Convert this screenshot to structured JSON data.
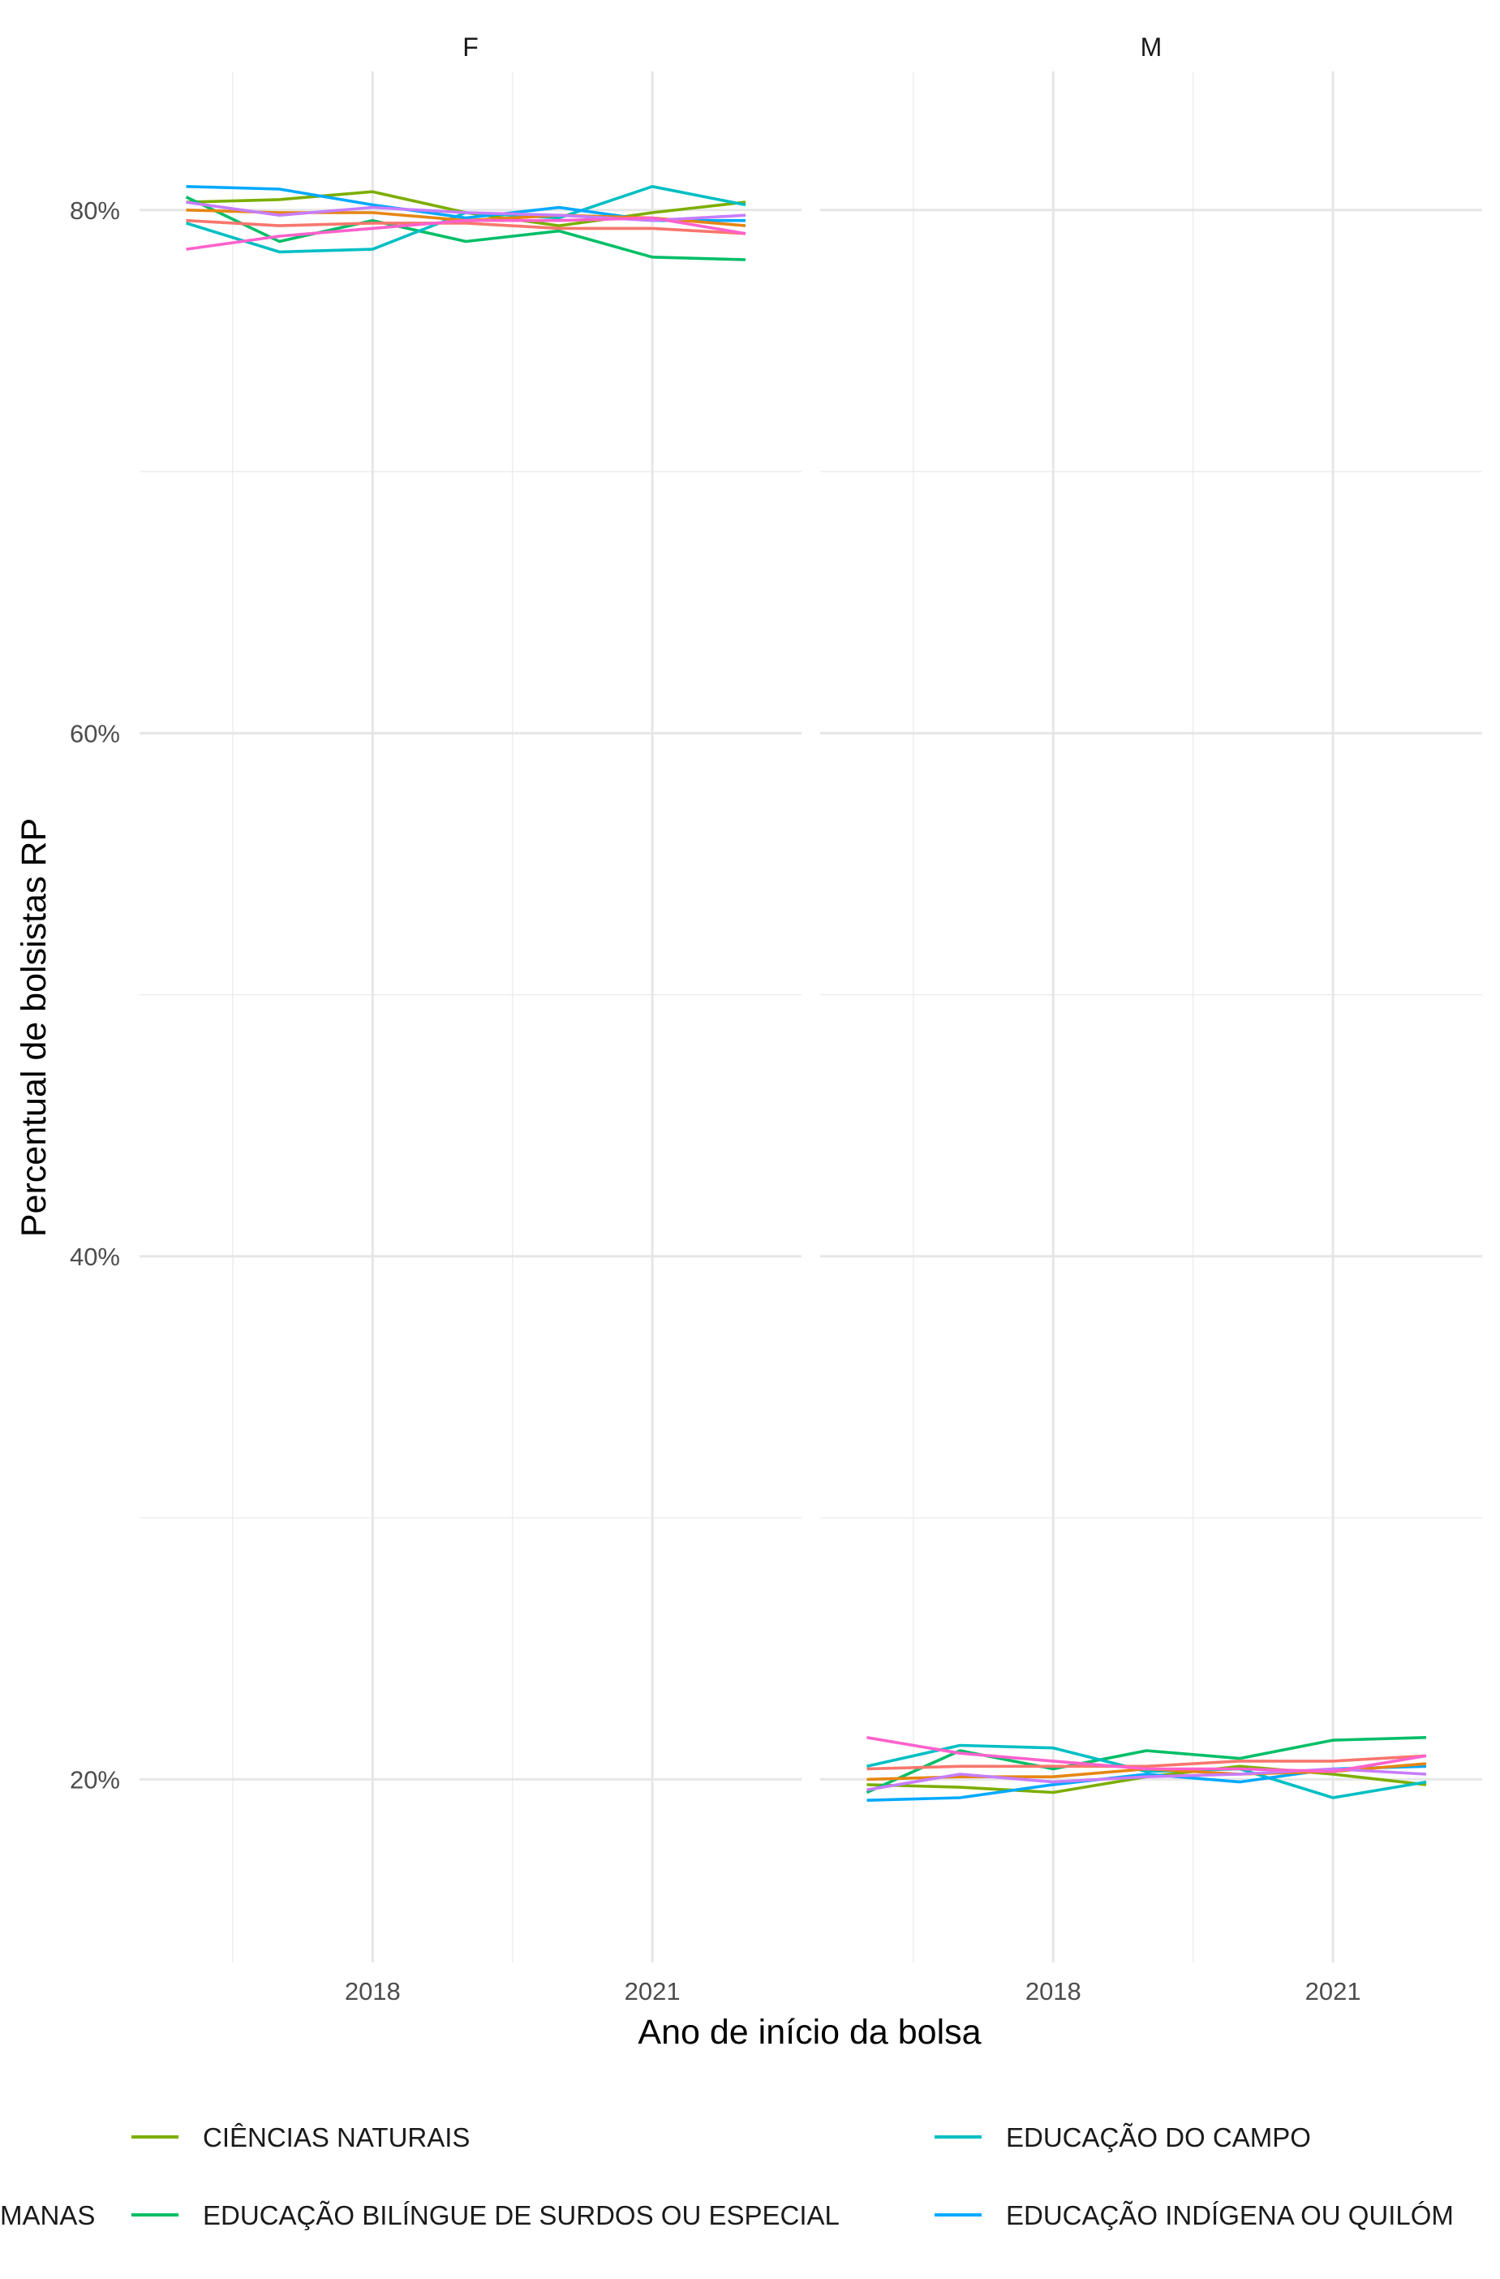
{
  "chart_data": {
    "type": "line",
    "ylabel": "Percentual de bolsistas RP",
    "xlabel": "Ano de início da bolsa",
    "x": [
      2016,
      2017,
      2018,
      2019,
      2020,
      2021,
      2022
    ],
    "xticks": [
      2018,
      2021
    ],
    "xlim": [
      2015.5,
      2022.6
    ],
    "yticks": [
      20,
      40,
      60,
      80
    ],
    "ytick_labels": [
      "20%",
      "40%",
      "60%",
      "80%"
    ],
    "ylim": [
      13,
      85.3
    ],
    "grid": true,
    "legend_position": "bottom",
    "legend_visible_labels": {
      "partial_left": "MANAS",
      "ciencias_naturais": "CIÊNCIAS NATURAIS",
      "educacao_bilingue": "EDUCAÇÃO BILÍNGUE DE SURDOS OU ESPECIAL",
      "educacao_campo": "EDUCAÇÃO DO CAMPO",
      "educacao_indigena": "EDUCAÇÃO INDÍGENA OU QUILÓM"
    },
    "panels": [
      {
        "label": "F",
        "series": [
          {
            "key": "ciencias_naturais",
            "color": "#7CAE00",
            "values": [
              80.3,
              80.4,
              80.7,
              79.9,
              79.4,
              79.9,
              80.3
            ]
          },
          {
            "key": "educacao_bilingue",
            "color": "#00BE67",
            "values": [
              80.5,
              78.8,
              79.6,
              78.8,
              79.2,
              78.2,
              78.1
            ]
          },
          {
            "key": "educacao_campo",
            "color": "#00BFC4",
            "values": [
              79.5,
              78.4,
              78.5,
              79.9,
              79.7,
              80.9,
              80.2
            ]
          },
          {
            "key": "educacao_indigena",
            "color": "#00A9FF",
            "values": [
              80.9,
              80.8,
              80.2,
              79.7,
              80.1,
              79.6,
              79.6
            ]
          },
          {
            "key": "outra_a",
            "color": "#F8766D",
            "values": [
              79.6,
              79.4,
              79.5,
              79.5,
              79.3,
              79.3,
              79.1
            ]
          },
          {
            "key": "outra_b",
            "color": "#E68613",
            "values": [
              80.0,
              79.9,
              79.9,
              79.6,
              79.8,
              79.7,
              79.4
            ]
          },
          {
            "key": "outra_c",
            "color": "#C77CFF",
            "values": [
              80.3,
              79.8,
              80.1,
              79.9,
              79.8,
              79.6,
              79.8
            ]
          },
          {
            "key": "outra_d",
            "color": "#FF61CC",
            "values": [
              78.5,
              79.0,
              79.3,
              79.6,
              79.6,
              79.7,
              79.1
            ]
          }
        ]
      },
      {
        "label": "M",
        "series": [
          {
            "key": "ciencias_naturais",
            "color": "#7CAE00",
            "values": [
              19.8,
              19.7,
              19.5,
              20.1,
              20.5,
              20.2,
              19.8
            ]
          },
          {
            "key": "educacao_bilingue",
            "color": "#00BE67",
            "values": [
              19.5,
              21.1,
              20.4,
              21.1,
              20.8,
              21.5,
              21.6
            ]
          },
          {
            "key": "educacao_campo",
            "color": "#00BFC4",
            "values": [
              20.5,
              21.3,
              21.2,
              20.3,
              20.4,
              19.3,
              19.9
            ]
          },
          {
            "key": "educacao_indigena",
            "color": "#00A9FF",
            "values": [
              19.2,
              19.3,
              19.8,
              20.2,
              19.9,
              20.4,
              20.5
            ]
          },
          {
            "key": "outra_a",
            "color": "#F8766D",
            "values": [
              20.4,
              20.5,
              20.5,
              20.5,
              20.7,
              20.7,
              20.9
            ]
          },
          {
            "key": "outra_b",
            "color": "#E68613",
            "values": [
              20.0,
              20.1,
              20.1,
              20.4,
              20.2,
              20.3,
              20.6
            ]
          },
          {
            "key": "outra_c",
            "color": "#C77CFF",
            "values": [
              19.6,
              20.2,
              19.9,
              20.1,
              20.2,
              20.4,
              20.2
            ]
          },
          {
            "key": "outra_d",
            "color": "#FF61CC",
            "values": [
              21.6,
              21.0,
              20.7,
              20.4,
              20.4,
              20.3,
              20.9
            ]
          }
        ]
      }
    ]
  }
}
